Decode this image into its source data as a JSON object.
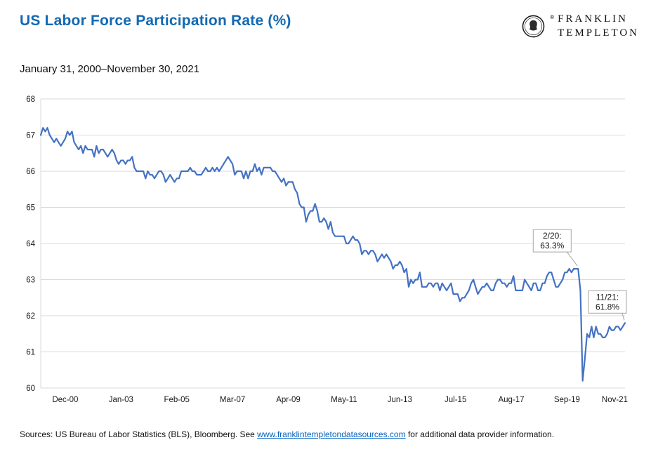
{
  "page": {
    "title": "US Labor Force Participation Rate (%)",
    "subtitle": "January 31, 2000–November 30, 2021",
    "logo": {
      "line1": "FRANKLIN",
      "line2": "TEMPLETON",
      "registered": "®"
    },
    "source": {
      "prefix": "Sources: US Bureau of Labor Statistics (BLS), Bloomberg. See ",
      "link": "www.franklintempletondatasources.com",
      "suffix": " for additional data provider information."
    },
    "colors": {
      "title": "#1269B3",
      "link": "#0563C1"
    }
  },
  "chart_data": {
    "type": "line",
    "title": "US Labor Force Participation Rate (%)",
    "subtitle": "January 31, 2000–November 30, 2021",
    "frequency": "monthly",
    "start_month": "2000-01",
    "end_month": "2021-11",
    "x_tick_labels": [
      "Dec-00",
      "Jan-03",
      "Feb-05",
      "Mar-07",
      "Apr-09",
      "May-11",
      "Jun-13",
      "Jul-15",
      "Aug-17",
      "Sep-19",
      "Nov-21"
    ],
    "x_tick_month_index": [
      11,
      36,
      61,
      86,
      111,
      136,
      161,
      186,
      211,
      236,
      262
    ],
    "ylim": [
      60,
      68
    ],
    "y_ticks": [
      60,
      61,
      62,
      63,
      64,
      65,
      66,
      67,
      68
    ],
    "grid": true,
    "legend": "none",
    "line_color": "#4472C4",
    "values": [
      67.0,
      67.2,
      67.1,
      67.2,
      67.0,
      66.9,
      66.8,
      66.9,
      66.8,
      66.7,
      66.8,
      66.9,
      67.1,
      67.0,
      67.1,
      66.8,
      66.7,
      66.6,
      66.7,
      66.5,
      66.7,
      66.6,
      66.6,
      66.6,
      66.4,
      66.7,
      66.5,
      66.6,
      66.6,
      66.5,
      66.4,
      66.5,
      66.6,
      66.5,
      66.3,
      66.2,
      66.3,
      66.3,
      66.2,
      66.3,
      66.3,
      66.4,
      66.1,
      66.0,
      66.0,
      66.0,
      66.0,
      65.8,
      66.0,
      65.9,
      65.9,
      65.8,
      65.9,
      66.0,
      66.0,
      65.9,
      65.7,
      65.8,
      65.9,
      65.8,
      65.7,
      65.8,
      65.8,
      66.0,
      66.0,
      66.0,
      66.0,
      66.1,
      66.0,
      66.0,
      65.9,
      65.9,
      65.9,
      66.0,
      66.1,
      66.0,
      66.0,
      66.1,
      66.0,
      66.1,
      66.0,
      66.1,
      66.2,
      66.3,
      66.4,
      66.3,
      66.2,
      65.9,
      66.0,
      66.0,
      66.0,
      65.8,
      66.0,
      65.8,
      66.0,
      66.0,
      66.2,
      66.0,
      66.1,
      65.9,
      66.1,
      66.1,
      66.1,
      66.1,
      66.0,
      66.0,
      65.9,
      65.8,
      65.7,
      65.8,
      65.6,
      65.7,
      65.7,
      65.7,
      65.5,
      65.4,
      65.1,
      65.0,
      65.0,
      64.6,
      64.8,
      64.9,
      64.9,
      65.1,
      64.9,
      64.6,
      64.6,
      64.7,
      64.6,
      64.4,
      64.6,
      64.3,
      64.2,
      64.2,
      64.2,
      64.2,
      64.2,
      64.0,
      64.0,
      64.1,
      64.2,
      64.1,
      64.1,
      64.0,
      63.7,
      63.8,
      63.8,
      63.7,
      63.8,
      63.8,
      63.7,
      63.5,
      63.6,
      63.7,
      63.6,
      63.7,
      63.6,
      63.5,
      63.3,
      63.4,
      63.4,
      63.5,
      63.4,
      63.2,
      63.3,
      62.8,
      63.0,
      62.9,
      63.0,
      63.0,
      63.2,
      62.8,
      62.8,
      62.8,
      62.9,
      62.9,
      62.8,
      62.9,
      62.9,
      62.7,
      62.9,
      62.8,
      62.7,
      62.8,
      62.9,
      62.6,
      62.6,
      62.6,
      62.4,
      62.5,
      62.5,
      62.6,
      62.7,
      62.9,
      63.0,
      62.8,
      62.6,
      62.7,
      62.8,
      62.8,
      62.9,
      62.8,
      62.7,
      62.7,
      62.9,
      63.0,
      63.0,
      62.9,
      62.9,
      62.8,
      62.9,
      62.9,
      63.1,
      62.7,
      62.7,
      62.7,
      62.7,
      63.0,
      62.9,
      62.8,
      62.7,
      62.9,
      62.9,
      62.7,
      62.7,
      62.9,
      62.9,
      63.1,
      63.2,
      63.2,
      63.0,
      62.8,
      62.8,
      62.9,
      63.0,
      63.2,
      63.2,
      63.3,
      63.2,
      63.3,
      63.3,
      63.3,
      62.7,
      60.2,
      60.8,
      61.5,
      61.4,
      61.7,
      61.4,
      61.7,
      61.5,
      61.5,
      61.4,
      61.4,
      61.5,
      61.7,
      61.6,
      61.6,
      61.7,
      61.7,
      61.6,
      61.7,
      61.8
    ],
    "annotations": [
      {
        "line1": "2/20:",
        "line2": "63.3%",
        "month_index": 241,
        "value": 63.3
      },
      {
        "line1": "11/21:",
        "line2": "61.8%",
        "month_index": 262,
        "value": 61.8
      }
    ]
  }
}
